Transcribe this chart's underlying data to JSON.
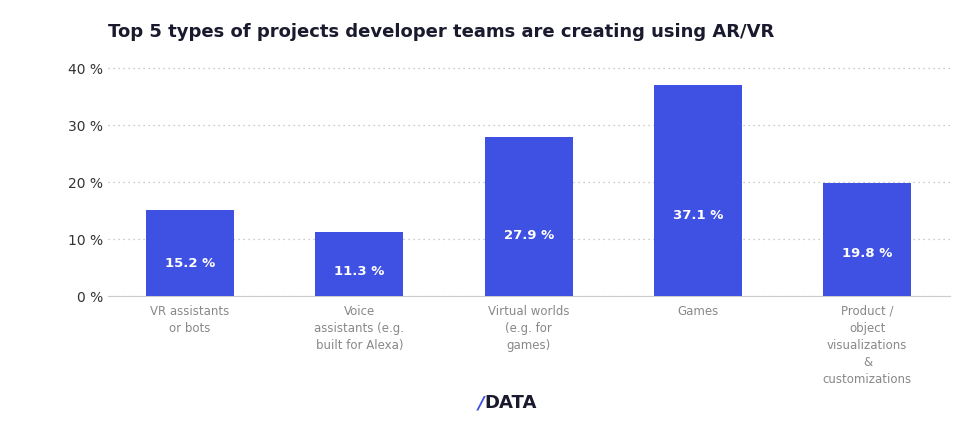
{
  "title": "Top 5 types of projects developer teams are creating using AR/VR",
  "categories": [
    "VR assistants\nor bots",
    "Voice\nassistants (e.g.\nbuilt for Alexa)",
    "Virtual worlds\n(e.g. for\ngames)",
    "Games",
    "Product /\nobject\nvisualizations\n&\ncustomizations"
  ],
  "values": [
    15.2,
    11.3,
    27.9,
    37.1,
    19.8
  ],
  "bar_color": "#3F51E3",
  "label_color": "#FFFFFF",
  "title_color": "#1a1a2e",
  "axis_label_color": "#888888",
  "ytick_color": "#333333",
  "background_color": "#FFFFFF",
  "ylim": [
    0,
    42
  ],
  "yticks": [
    0,
    10,
    20,
    30,
    40
  ],
  "grid_color": "#BBBBBB",
  "bar_width": 0.52,
  "label_fontsize": 9.5,
  "tick_fontsize": 8.5,
  "ytick_fontsize": 10,
  "title_fontsize": 13,
  "legend_fontsize": 9
}
